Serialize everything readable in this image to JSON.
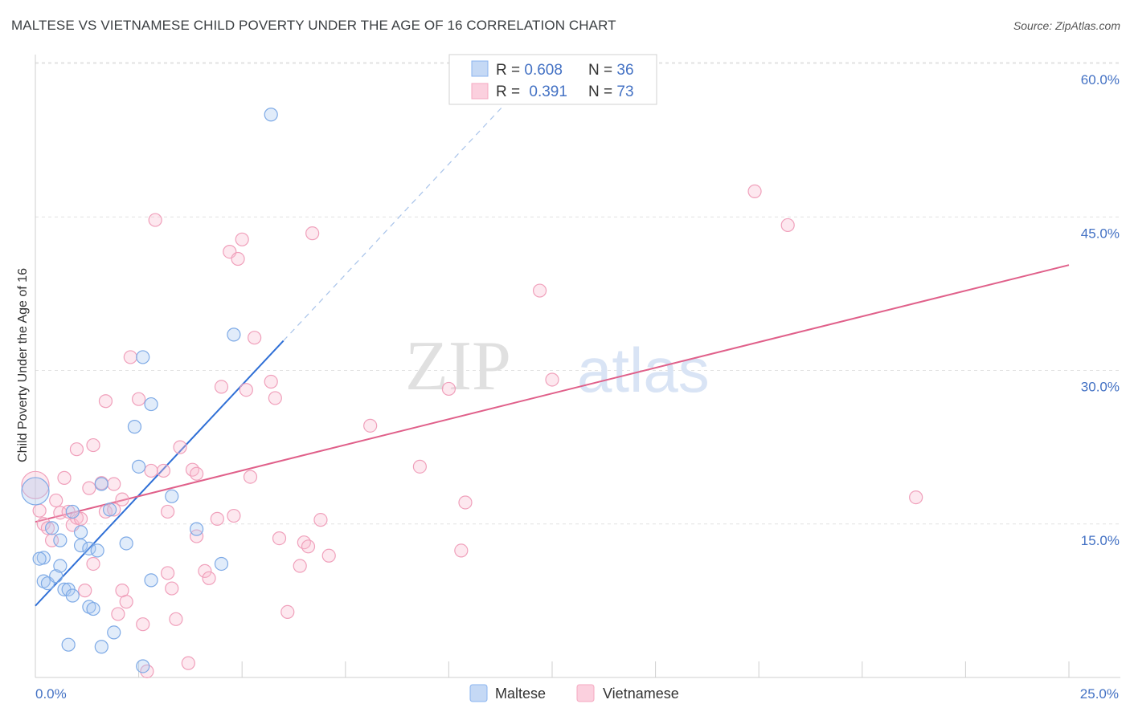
{
  "chart_data": {
    "type": "scatter",
    "title": "MALTESE VS VIETNAMESE CHILD POVERTY UNDER THE AGE OF 16 CORRELATION CHART",
    "source": "Source: ZipAtlas.com",
    "xlabel": "",
    "ylabel": "Child Poverty Under the Age of 16",
    "xlim": [
      0,
      25
    ],
    "ylim": [
      0,
      60
    ],
    "x_tick_labels": [
      "0.0%",
      "25.0%"
    ],
    "y_ticks": [
      15,
      30,
      45,
      60
    ],
    "y_tick_labels": [
      "15.0%",
      "30.0%",
      "45.0%",
      "60.0%"
    ],
    "watermark": {
      "zip": "ZIP",
      "atlas": "atlas"
    },
    "legend": {
      "entries": [
        {
          "r_label": "R = ",
          "r_value": "0.608",
          "n_label": "N = ",
          "n_value": "36"
        },
        {
          "r_label": "R = ",
          "r_value": "0.391",
          "n_label": "N = ",
          "n_value": "73"
        }
      ]
    },
    "series": [
      {
        "name": "Maltese",
        "color": "#8ab4f0",
        "line_color": "#2f6fd6",
        "trend": {
          "x0": 0,
          "y0": 7.0,
          "x1": 6.0,
          "y1": 32.9,
          "dash_x1": 11.5
        },
        "points": [
          [
            0.0,
            18.2
          ],
          [
            0.2,
            11.7
          ],
          [
            0.2,
            9.4
          ],
          [
            0.3,
            9.2
          ],
          [
            0.4,
            14.6
          ],
          [
            0.5,
            9.9
          ],
          [
            0.6,
            13.4
          ],
          [
            0.6,
            10.9
          ],
          [
            0.7,
            8.6
          ],
          [
            0.8,
            3.2
          ],
          [
            0.8,
            8.6
          ],
          [
            0.9,
            8.0
          ],
          [
            0.9,
            16.2
          ],
          [
            1.1,
            14.2
          ],
          [
            1.1,
            12.9
          ],
          [
            1.3,
            12.6
          ],
          [
            1.3,
            6.9
          ],
          [
            1.4,
            6.7
          ],
          [
            1.5,
            12.4
          ],
          [
            1.6,
            18.9
          ],
          [
            1.6,
            3.0
          ],
          [
            1.8,
            16.4
          ],
          [
            1.9,
            4.4
          ],
          [
            2.2,
            13.1
          ],
          [
            2.4,
            24.5
          ],
          [
            2.5,
            20.6
          ],
          [
            2.6,
            1.1
          ],
          [
            2.6,
            31.3
          ],
          [
            2.8,
            9.5
          ],
          [
            2.8,
            26.7
          ],
          [
            3.3,
            17.7
          ],
          [
            3.9,
            14.5
          ],
          [
            4.5,
            11.1
          ],
          [
            4.8,
            33.5
          ],
          [
            5.7,
            55.0
          ],
          [
            0.1,
            11.6
          ]
        ]
      },
      {
        "name": "Vietnamese",
        "color": "#f5a8c0",
        "line_color": "#e0608a",
        "trend": {
          "x0": 0,
          "y0": 15.2,
          "x1": 25.0,
          "y1": 40.3
        },
        "points": [
          [
            0.0,
            18.8
          ],
          [
            0.1,
            16.3
          ],
          [
            0.2,
            15.0
          ],
          [
            0.3,
            14.6
          ],
          [
            0.4,
            13.4
          ],
          [
            0.5,
            17.3
          ],
          [
            0.6,
            16.1
          ],
          [
            0.7,
            19.5
          ],
          [
            0.8,
            16.2
          ],
          [
            0.9,
            14.9
          ],
          [
            1.0,
            15.6
          ],
          [
            1.0,
            22.3
          ],
          [
            1.1,
            15.5
          ],
          [
            1.2,
            8.5
          ],
          [
            1.3,
            18.5
          ],
          [
            1.4,
            22.7
          ],
          [
            1.4,
            11.1
          ],
          [
            1.6,
            19.0
          ],
          [
            1.7,
            16.2
          ],
          [
            1.7,
            27.0
          ],
          [
            1.9,
            16.4
          ],
          [
            1.9,
            18.9
          ],
          [
            2.0,
            6.2
          ],
          [
            2.1,
            8.5
          ],
          [
            2.1,
            17.4
          ],
          [
            2.2,
            7.4
          ],
          [
            2.3,
            31.3
          ],
          [
            2.5,
            27.2
          ],
          [
            2.6,
            5.2
          ],
          [
            2.7,
            0.6
          ],
          [
            2.8,
            20.2
          ],
          [
            2.9,
            44.7
          ],
          [
            3.1,
            20.2
          ],
          [
            3.2,
            10.2
          ],
          [
            3.2,
            16.2
          ],
          [
            3.3,
            8.7
          ],
          [
            3.4,
            5.7
          ],
          [
            3.5,
            22.5
          ],
          [
            3.7,
            1.4
          ],
          [
            3.8,
            20.3
          ],
          [
            3.9,
            19.9
          ],
          [
            3.9,
            13.8
          ],
          [
            4.1,
            10.4
          ],
          [
            4.2,
            9.7
          ],
          [
            4.4,
            15.5
          ],
          [
            4.5,
            28.4
          ],
          [
            4.7,
            41.6
          ],
          [
            4.8,
            15.8
          ],
          [
            4.9,
            40.9
          ],
          [
            5.0,
            42.8
          ],
          [
            5.1,
            28.1
          ],
          [
            5.2,
            19.6
          ],
          [
            5.3,
            33.2
          ],
          [
            5.7,
            28.9
          ],
          [
            5.8,
            27.3
          ],
          [
            5.9,
            13.6
          ],
          [
            6.1,
            6.4
          ],
          [
            6.4,
            10.9
          ],
          [
            6.5,
            13.2
          ],
          [
            6.6,
            12.8
          ],
          [
            6.7,
            43.4
          ],
          [
            6.9,
            15.4
          ],
          [
            7.1,
            11.9
          ],
          [
            8.1,
            24.6
          ],
          [
            9.3,
            20.6
          ],
          [
            10.0,
            28.2
          ],
          [
            10.3,
            12.4
          ],
          [
            10.4,
            17.1
          ],
          [
            12.2,
            37.8
          ],
          [
            12.5,
            29.1
          ],
          [
            17.4,
            47.5
          ],
          [
            18.2,
            44.2
          ],
          [
            21.3,
            17.6
          ]
        ]
      }
    ]
  }
}
